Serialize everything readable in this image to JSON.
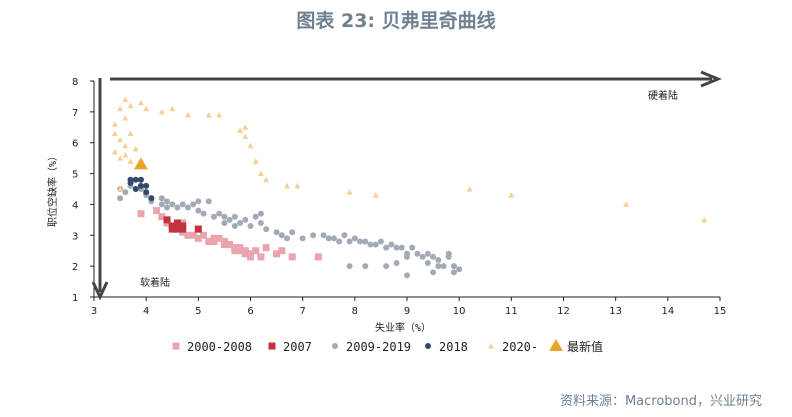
{
  "header": {
    "title": "图表 23: 贝弗里奇曲线",
    "source": "资料来源：Macrobond，兴业研究"
  },
  "chart_data": {
    "type": "scatter",
    "title": "图表 23: 贝弗里奇曲线",
    "xlabel": "失业率（%）",
    "ylabel": "职位空缺率（%）",
    "xlim": [
      3,
      15
    ],
    "ylim": [
      1,
      8
    ],
    "xticks": [
      3,
      4,
      5,
      6,
      7,
      8,
      9,
      10,
      11,
      12,
      13,
      14,
      15
    ],
    "yticks": [
      1,
      2,
      3,
      4,
      5,
      6,
      7,
      8
    ],
    "grid": false,
    "legend_position": "bottom",
    "annotations": {
      "hard_landing": "硬着陆",
      "soft_landing": "软着陆"
    },
    "colors": {
      "2000-2008": "#e9a4ae",
      "2007": "#c0343f",
      "2009-2019": "#a3aab6",
      "2018": "#34486b",
      "2020-": "#f5cf96",
      "latest": "#e9a42a",
      "axis": "#222222",
      "arrow": "#444444"
    },
    "series": [
      {
        "name": "2000-2008",
        "marker": "square",
        "points": [
          [
            3.9,
            3.7
          ],
          [
            4.2,
            3.8
          ],
          [
            4.3,
            3.6
          ],
          [
            4.4,
            3.4
          ],
          [
            4.5,
            3.3
          ],
          [
            4.6,
            3.2
          ],
          [
            4.7,
            3.1
          ],
          [
            4.8,
            3.0
          ],
          [
            4.9,
            3.0
          ],
          [
            5.0,
            2.9
          ],
          [
            5.1,
            3.0
          ],
          [
            5.2,
            2.8
          ],
          [
            5.3,
            2.8
          ],
          [
            5.4,
            2.9
          ],
          [
            5.5,
            2.7
          ],
          [
            5.6,
            2.7
          ],
          [
            5.7,
            2.6
          ],
          [
            5.8,
            2.5
          ],
          [
            5.9,
            2.5
          ],
          [
            6.0,
            2.4
          ],
          [
            6.1,
            2.5
          ],
          [
            6.2,
            2.3
          ],
          [
            5.7,
            2.5
          ],
          [
            5.8,
            2.6
          ],
          [
            5.9,
            2.4
          ],
          [
            6.0,
            2.3
          ],
          [
            6.3,
            2.6
          ],
          [
            6.5,
            2.4
          ],
          [
            6.6,
            2.5
          ],
          [
            6.8,
            2.3
          ],
          [
            7.3,
            2.3
          ],
          [
            5.5,
            2.8
          ],
          [
            5.3,
            2.9
          ],
          [
            5.0,
            3.2
          ],
          [
            4.7,
            3.4
          ]
        ]
      },
      {
        "name": "2007",
        "marker": "square",
        "points": [
          [
            4.4,
            3.5
          ],
          [
            4.5,
            3.3
          ],
          [
            4.6,
            3.4
          ],
          [
            4.6,
            3.2
          ],
          [
            4.7,
            3.2
          ],
          [
            4.7,
            3.3
          ],
          [
            4.5,
            3.2
          ],
          [
            5.0,
            3.2
          ]
        ]
      },
      {
        "name": "2009-2019",
        "marker": "circle",
        "points": [
          [
            3.5,
            4.5
          ],
          [
            3.6,
            4.4
          ],
          [
            3.5,
            4.2
          ],
          [
            3.7,
            4.6
          ],
          [
            3.9,
            4.5
          ],
          [
            4.0,
            4.3
          ],
          [
            4.1,
            4.2
          ],
          [
            4.1,
            4.1
          ],
          [
            4.3,
            4.2
          ],
          [
            4.3,
            4.0
          ],
          [
            4.4,
            3.9
          ],
          [
            4.5,
            4.0
          ],
          [
            4.6,
            3.9
          ],
          [
            4.7,
            4.0
          ],
          [
            4.4,
            4.1
          ],
          [
            4.8,
            3.9
          ],
          [
            4.9,
            4.0
          ],
          [
            5.0,
            3.8
          ],
          [
            5.0,
            4.1
          ],
          [
            5.2,
            4.1
          ],
          [
            5.1,
            3.7
          ],
          [
            5.3,
            3.6
          ],
          [
            5.4,
            3.7
          ],
          [
            5.5,
            3.6
          ],
          [
            5.5,
            3.4
          ],
          [
            5.6,
            3.5
          ],
          [
            5.7,
            3.6
          ],
          [
            5.8,
            3.4
          ],
          [
            5.9,
            3.5
          ],
          [
            6.0,
            3.3
          ],
          [
            5.7,
            3.3
          ],
          [
            6.2,
            3.4
          ],
          [
            6.3,
            3.2
          ],
          [
            6.1,
            3.6
          ],
          [
            6.2,
            3.7
          ],
          [
            6.5,
            3.1
          ],
          [
            6.6,
            3.0
          ],
          [
            6.7,
            2.9
          ],
          [
            6.8,
            3.1
          ],
          [
            7.0,
            2.9
          ],
          [
            7.2,
            3.0
          ],
          [
            7.4,
            3.0
          ],
          [
            7.5,
            2.9
          ],
          [
            7.6,
            2.9
          ],
          [
            7.7,
            2.8
          ],
          [
            7.8,
            3.0
          ],
          [
            7.9,
            2.8
          ],
          [
            8.0,
            2.9
          ],
          [
            8.1,
            2.8
          ],
          [
            8.2,
            2.8
          ],
          [
            8.3,
            2.7
          ],
          [
            8.4,
            2.7
          ],
          [
            8.5,
            2.8
          ],
          [
            8.6,
            2.6
          ],
          [
            8.7,
            2.7
          ],
          [
            8.8,
            2.6
          ],
          [
            8.9,
            2.6
          ],
          [
            9.0,
            2.4
          ],
          [
            9.1,
            2.6
          ],
          [
            9.2,
            2.4
          ],
          [
            9.3,
            2.3
          ],
          [
            9.4,
            2.1
          ],
          [
            9.5,
            2.3
          ],
          [
            9.6,
            2.2
          ],
          [
            9.7,
            2.0
          ],
          [
            9.8,
            2.3
          ],
          [
            9.9,
            2.0
          ],
          [
            10.0,
            1.9
          ],
          [
            9.5,
            1.8
          ],
          [
            9.6,
            2.0
          ],
          [
            9.4,
            2.4
          ],
          [
            9.0,
            2.3
          ],
          [
            8.6,
            2.0
          ],
          [
            8.8,
            2.1
          ],
          [
            9.0,
            1.7
          ],
          [
            7.9,
            2.0
          ],
          [
            8.2,
            2.0
          ],
          [
            9.9,
            1.8
          ],
          [
            9.8,
            2.4
          ]
        ]
      },
      {
        "name": "2018",
        "marker": "circle",
        "points": [
          [
            3.7,
            4.7
          ],
          [
            3.8,
            4.8
          ],
          [
            3.9,
            4.8
          ],
          [
            4.0,
            4.6
          ],
          [
            4.0,
            4.4
          ],
          [
            4.1,
            4.2
          ],
          [
            3.8,
            4.5
          ],
          [
            3.7,
            4.8
          ],
          [
            3.9,
            4.6
          ]
        ]
      },
      {
        "name": "2020-",
        "marker": "triangle",
        "points": [
          [
            3.5,
            7.1
          ],
          [
            3.6,
            7.4
          ],
          [
            3.7,
            7.2
          ],
          [
            3.9,
            7.3
          ],
          [
            4.0,
            7.1
          ],
          [
            4.3,
            7.0
          ],
          [
            4.5,
            7.1
          ],
          [
            4.8,
            6.9
          ],
          [
            5.2,
            6.9
          ],
          [
            5.4,
            6.9
          ],
          [
            5.8,
            6.4
          ],
          [
            5.9,
            6.5
          ],
          [
            5.9,
            6.2
          ],
          [
            6.0,
            5.9
          ],
          [
            6.1,
            5.4
          ],
          [
            6.2,
            5.0
          ],
          [
            6.3,
            4.8
          ],
          [
            6.7,
            4.6
          ],
          [
            6.9,
            4.6
          ],
          [
            7.9,
            4.4
          ],
          [
            8.4,
            4.3
          ],
          [
            10.2,
            4.5
          ],
          [
            11.0,
            4.3
          ],
          [
            13.2,
            4.0
          ],
          [
            14.7,
            3.5
          ],
          [
            3.4,
            6.6
          ],
          [
            3.4,
            6.3
          ],
          [
            3.5,
            6.1
          ],
          [
            3.6,
            5.9
          ],
          [
            3.4,
            5.7
          ],
          [
            3.5,
            5.5
          ],
          [
            3.6,
            5.6
          ],
          [
            3.7,
            5.4
          ],
          [
            3.8,
            5.8
          ],
          [
            3.7,
            6.3
          ],
          [
            3.6,
            6.8
          ],
          [
            3.5,
            4.5
          ]
        ]
      },
      {
        "name": "最新值",
        "marker": "triangle-large",
        "points": [
          [
            3.9,
            5.3
          ]
        ]
      }
    ]
  }
}
